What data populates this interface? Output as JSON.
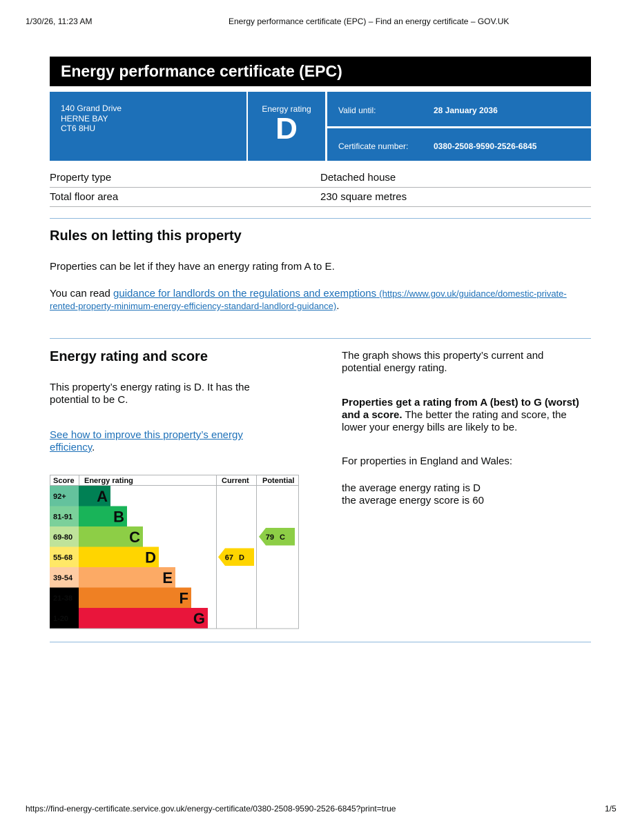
{
  "print_header": {
    "date": "1/30/26, 11:23 AM",
    "title": "Energy performance certificate (EPC) – Find an energy certificate – GOV.UK"
  },
  "header": {
    "title": "Energy performance certificate (EPC)"
  },
  "address": [
    "140 Grand Drive",
    "HERNE BAY",
    "CT6 8HU"
  ],
  "rating_box": {
    "label": "Energy rating",
    "rating": "D"
  },
  "valid_until": {
    "label": "Valid until:",
    "value": "28 January 2036"
  },
  "certificate_number": {
    "label": "Certificate number:",
    "value": "0380-2508-9590-2526-6845"
  },
  "summary": {
    "rows": [
      [
        "Property type",
        "Detached house"
      ],
      [
        "Total floor area",
        "230 square metres"
      ]
    ]
  },
  "rules": {
    "heading": "Rules on letting this property",
    "paragraph": "Properties can be let if they have an energy rating from A to E.",
    "guidance": {
      "prefix": "You can read ",
      "link": "guidance for landlords on the regulations and exemptions",
      "url": "(https://www.gov.uk/guidance/domestic-private-rented-property-minimum-energy-efficiency-standard-landlord-guidance)",
      "suffix": "."
    }
  },
  "energy": {
    "heading": "Energy rating and score",
    "paragraph": "This property’s energy rating is D. It has the potential to be C.",
    "improve": {
      "link": "See how to improve this property’s energy efficiency",
      "suffix": "."
    },
    "graph": {
      "headers": [
        "Score",
        "Energy rating",
        "Current",
        "Potential"
      ],
      "bands": [
        {
          "score": "92+",
          "letter": "A",
          "color": "#008054",
          "score_color": "#64c29d"
        },
        {
          "score": "81-91",
          "letter": "B",
          "color": "#19b459",
          "score_color": "#7bd09a"
        },
        {
          "score": "69-80",
          "letter": "C",
          "color": "#8dce46",
          "score_color": "#bfe39a"
        },
        {
          "score": "55-68",
          "letter": "D",
          "color": "#ffd500",
          "score_color": "#ffe866"
        },
        {
          "score": "39-54",
          "letter": "E",
          "color": "#fcaa65",
          "score_color": "#fdcca3"
        },
        {
          "score": "21-38",
          "letter": "F",
          "color": "#ef8023",
          "score_color": "#000000"
        },
        {
          "score": "1-20",
          "letter": "G",
          "color": "#e9153b",
          "score_color": "#000000"
        }
      ],
      "current": {
        "score": 67,
        "letter": "D"
      },
      "potential": {
        "score": 79,
        "letter": "C"
      }
    },
    "right": {
      "paragraph1": "The graph shows this property’s current and potential energy rating.",
      "paragraph2_bold": "Properties get a rating from A (best) to G (worst) and a score.",
      "paragraph2_rest": " The better the rating and score, the lower your energy bills are likely to be.",
      "paragraph3": "For properties in England and Wales:",
      "averages": [
        "the average energy rating is D",
        "the average energy score is 60"
      ]
    }
  },
  "print_footer": {
    "url": "https://find-energy-certificate.service.gov.uk/energy-certificate/0380-2508-9590-2526-6845?print=true",
    "page": "1/5"
  }
}
